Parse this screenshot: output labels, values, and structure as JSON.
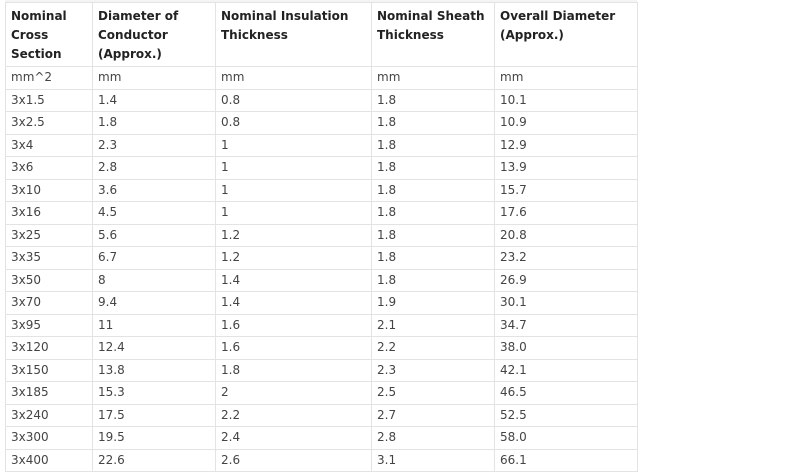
{
  "table": {
    "headers": [
      "Nominal Cross Section",
      "Diameter of Conductor (Approx.)",
      "Nominal Insulation Thickness",
      "Nominal Sheath Thickness",
      "Overall Diameter (Approx.)"
    ],
    "units": [
      "mm^2",
      "mm",
      "mm",
      "mm",
      "mm"
    ],
    "rows": [
      [
        "3x1.5",
        "1.4",
        "0.8",
        "1.8",
        "10.1"
      ],
      [
        "3x2.5",
        "1.8",
        "0.8",
        "1.8",
        "10.9"
      ],
      [
        "3x4",
        "2.3",
        "1",
        "1.8",
        "12.9"
      ],
      [
        "3x6",
        "2.8",
        "1",
        "1.8",
        "13.9"
      ],
      [
        "3x10",
        "3.6",
        "1",
        "1.8",
        "15.7"
      ],
      [
        "3x16",
        "4.5",
        "1",
        "1.8",
        "17.6"
      ],
      [
        "3x25",
        "5.6",
        "1.2",
        "1.8",
        "20.8"
      ],
      [
        "3x35",
        "6.7",
        "1.2",
        "1.8",
        "23.2"
      ],
      [
        "3x50",
        "8",
        "1.4",
        "1.8",
        "26.9"
      ],
      [
        "3x70",
        "9.4",
        "1.4",
        "1.9",
        "30.1"
      ],
      [
        "3x95",
        "11",
        "1.6",
        "2.1",
        "34.7"
      ],
      [
        "3x120",
        "12.4",
        "1.6",
        "2.2",
        "38.0"
      ],
      [
        "3x150",
        "13.8",
        "1.8",
        "2.3",
        "42.1"
      ],
      [
        "3x185",
        "15.3",
        "2",
        "2.5",
        "46.5"
      ],
      [
        "3x240",
        "17.5",
        "2.2",
        "2.7",
        "52.5"
      ],
      [
        "3x300",
        "19.5",
        "2.4",
        "2.8",
        "58.0"
      ],
      [
        "3x400",
        "22.6",
        "2.6",
        "3.1",
        "66.1"
      ]
    ]
  }
}
